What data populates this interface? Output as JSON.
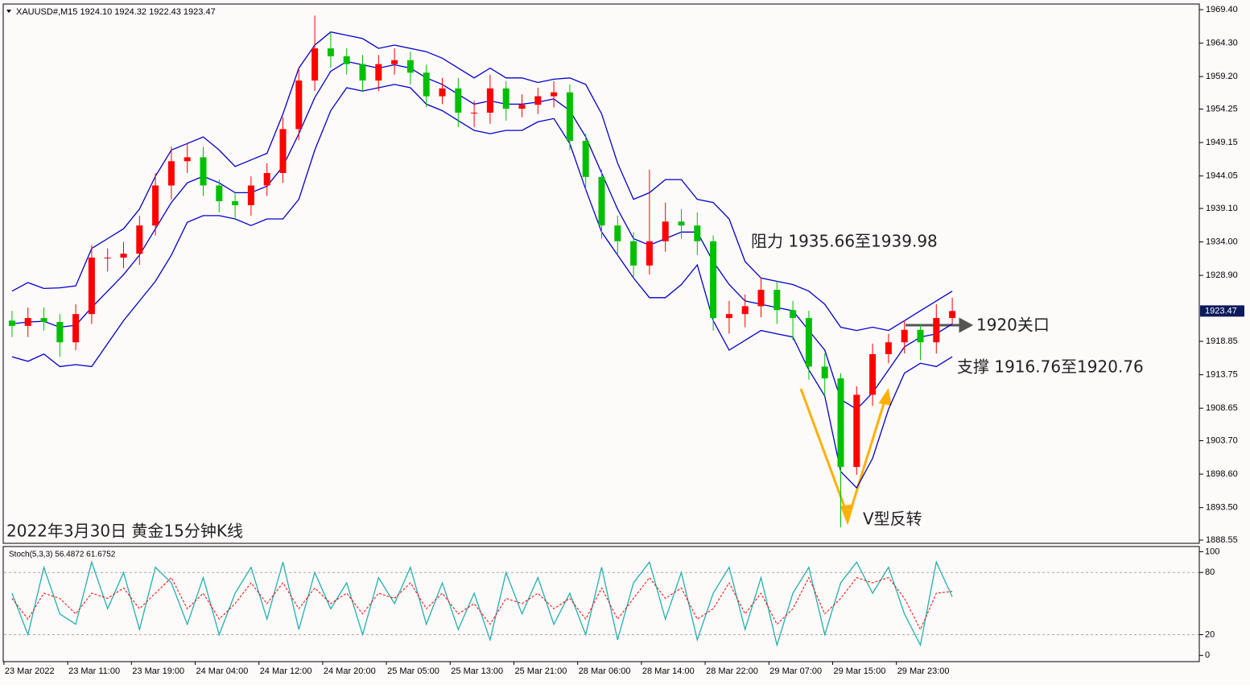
{
  "chart_data": [
    {
      "type": "candlestick",
      "header": "XAUUSD#,M15  1924.10 1924.32 1922.43 1923.47",
      "up_color": "#ff0000",
      "down_color": "#00c000",
      "categories": [
        "23 Mar 2022",
        null,
        null,
        null,
        "23 Mar 11:00",
        null,
        null,
        null,
        "23 Mar 19:00",
        null,
        null,
        null,
        "24 Mar 04:00",
        null,
        null,
        null,
        "24 Mar 12:00",
        null,
        null,
        null,
        "24 Mar 20:00",
        null,
        null,
        null,
        "25 Mar 05:00",
        null,
        null,
        null,
        "25 Mar 13:00",
        null,
        null,
        null,
        "25 Mar 21:00",
        null,
        null,
        null,
        "28 Mar 06:00",
        null,
        null,
        null,
        "28 Mar 14:00",
        null,
        null,
        null,
        "28 Mar 22:00",
        null,
        null,
        null,
        "29 Mar 07:00",
        null,
        null,
        null,
        "29 Mar 15:00",
        null,
        null,
        null,
        "29 Mar 23:00",
        null,
        null,
        null
      ],
      "open": [
        1922.0,
        1921.2,
        1922.4,
        1921.8,
        1918.7,
        1923.0,
        1931.6,
        1931.6,
        1932.2,
        1936.5,
        1942.6,
        1946.3,
        1946.9,
        1942.6,
        1940.2,
        1939.6,
        1942.6,
        1944.5,
        1951.2,
        1958.6,
        1963.5,
        1962.3,
        1961.1,
        1958.6,
        1961.1,
        1961.7,
        1959.8,
        1956.2,
        1957.4,
        1953.7,
        1953.7,
        1957.4,
        1954.3,
        1954.9,
        1956.2,
        1956.8,
        1949.4,
        1943.9,
        1936.5,
        1934.1,
        1930.4,
        1934.1,
        1937.1,
        1936.5,
        1934.1,
        1922.4,
        1923.0,
        1924.2,
        1926.7,
        1923.6,
        1922.4,
        1915.0,
        1913.2,
        1899.7,
        1910.7,
        1916.9,
        1918.7,
        1920.6,
        1918.7,
        1922.4
      ],
      "high": [
        1923.5,
        1924.0,
        1924.0,
        1923.0,
        1924.5,
        1933.5,
        1933.0,
        1934.0,
        1938.0,
        1944.5,
        1948.5,
        1949.0,
        1948.5,
        1943.5,
        1941.5,
        1944.0,
        1946.0,
        1953.0,
        1960.5,
        1968.5,
        1966.0,
        1963.5,
        1962.5,
        1962.5,
        1963.5,
        1963.0,
        1961.0,
        1959.0,
        1959.0,
        1955.5,
        1959.5,
        1958.5,
        1956.5,
        1957.5,
        1958.5,
        1958.0,
        1950.5,
        1945.0,
        1938.0,
        1935.5,
        1945.0,
        1940.0,
        1939.0,
        1938.5,
        1935.0,
        1925.0,
        1926.0,
        1928.5,
        1928.0,
        1925.0,
        1923.5,
        1917.0,
        1914.0,
        1912.0,
        1918.5,
        1920.0,
        1922.0,
        1921.5,
        1924.5,
        1925.5
      ],
      "low": [
        1919.5,
        1919.5,
        1920.5,
        1916.5,
        1917.5,
        1921.5,
        1929.5,
        1930.0,
        1930.5,
        1935.0,
        1940.5,
        1944.5,
        1941.0,
        1938.5,
        1937.5,
        1938.0,
        1941.0,
        1943.0,
        1949.5,
        1957.0,
        1960.5,
        1959.5,
        1957.0,
        1957.0,
        1959.5,
        1958.0,
        1954.5,
        1955.0,
        1951.5,
        1951.5,
        1952.0,
        1952.5,
        1953.0,
        1953.5,
        1954.5,
        1948.0,
        1942.0,
        1934.5,
        1932.0,
        1928.5,
        1929.0,
        1932.5,
        1934.5,
        1932.0,
        1920.5,
        1920.0,
        1921.0,
        1922.5,
        1921.5,
        1919.0,
        1913.0,
        1910.5,
        1890.5,
        1898.5,
        1909.0,
        1915.5,
        1917.0,
        1916.0,
        1917.0,
        1921.5
      ],
      "close": [
        1921.2,
        1922.4,
        1921.8,
        1918.7,
        1923.0,
        1931.6,
        1931.6,
        1932.2,
        1936.5,
        1942.6,
        1946.3,
        1946.9,
        1942.6,
        1940.2,
        1939.6,
        1942.6,
        1944.5,
        1951.2,
        1958.6,
        1963.5,
        1962.3,
        1961.1,
        1958.6,
        1961.1,
        1961.7,
        1959.8,
        1956.2,
        1957.4,
        1953.7,
        1953.7,
        1957.4,
        1954.3,
        1954.9,
        1956.2,
        1956.8,
        1949.4,
        1943.9,
        1936.5,
        1934.1,
        1930.4,
        1934.1,
        1937.1,
        1936.5,
        1934.1,
        1922.4,
        1923.0,
        1924.2,
        1926.7,
        1923.6,
        1922.4,
        1915.0,
        1913.2,
        1899.7,
        1910.7,
        1916.9,
        1918.7,
        1920.6,
        1918.7,
        1922.4,
        1923.47
      ],
      "series": [
        {
          "color": "#0000cc",
          "values": [
            1926.5,
            1927.8,
            1926.9,
            1927.0,
            1927.3,
            1933.0,
            1934.5,
            1936.0,
            1939.0,
            1944.0,
            1948.0,
            1949.0,
            1950.0,
            1948.0,
            1945.5,
            1946.5,
            1947.5,
            1953.5,
            1960.5,
            1964.0,
            1966.0,
            1965.5,
            1965.0,
            1963.5,
            1964.0,
            1963.5,
            1963.0,
            1962.0,
            1960.5,
            1959.0,
            1960.5,
            1959.0,
            1959.0,
            1958.3,
            1958.8,
            1959.0,
            1958.0,
            1953.5,
            1946.0,
            1940.5,
            1941.5,
            1943.5,
            1943.5,
            1940.5,
            1940.0,
            1937.5,
            1931.0,
            1928.5,
            1928.0,
            1927.5,
            1926.5,
            1924.5,
            1921.0,
            1920.5,
            1921.0,
            1920.5,
            1922.0,
            1923.5,
            1925.0,
            1926.5
          ]
        },
        {
          "color": "#0000cc",
          "values": [
            1921.5,
            1921.8,
            1921.9,
            1921.0,
            1921.3,
            1924.0,
            1926.5,
            1929.0,
            1932.0,
            1936.0,
            1940.0,
            1943.0,
            1944.0,
            1943.0,
            1941.5,
            1941.5,
            1942.5,
            1945.5,
            1950.5,
            1956.0,
            1960.0,
            1961.5,
            1961.0,
            1960.5,
            1961.0,
            1960.5,
            1959.0,
            1958.0,
            1956.5,
            1955.0,
            1955.5,
            1955.0,
            1955.0,
            1955.3,
            1955.8,
            1954.0,
            1950.0,
            1944.5,
            1939.0,
            1934.5,
            1933.5,
            1934.5,
            1935.5,
            1935.5,
            1931.0,
            1927.5,
            1925.0,
            1924.5,
            1924.0,
            1923.5,
            1920.5,
            1917.5,
            1910.0,
            1908.5,
            1911.0,
            1914.5,
            1918.0,
            1919.5,
            1920.0,
            1921.5
          ]
        },
        {
          "color": "#0000cc",
          "values": [
            1916.5,
            1915.8,
            1916.9,
            1915.0,
            1915.3,
            1915.0,
            1918.5,
            1922.0,
            1925.0,
            1928.0,
            1932.0,
            1937.0,
            1938.0,
            1938.0,
            1937.5,
            1936.5,
            1937.5,
            1937.5,
            1940.5,
            1948.0,
            1954.0,
            1957.5,
            1957.0,
            1957.5,
            1958.0,
            1957.5,
            1955.0,
            1954.0,
            1952.5,
            1951.0,
            1950.5,
            1951.0,
            1951.0,
            1952.3,
            1952.8,
            1949.0,
            1942.0,
            1935.5,
            1932.0,
            1928.5,
            1925.5,
            1925.5,
            1927.5,
            1930.5,
            1922.0,
            1917.5,
            1919.0,
            1920.5,
            1920.0,
            1919.5,
            1914.5,
            1910.5,
            1899.0,
            1896.5,
            1901.0,
            1908.5,
            1914.0,
            1915.5,
            1915.0,
            1916.5
          ]
        }
      ],
      "ylim": [
        1888.06,
        1970.26
      ],
      "yticks": [
        {
          "value": 1969.4,
          "label": "1969.40"
        },
        {
          "value": 1964.3,
          "label": "1964.30"
        },
        {
          "value": 1959.2,
          "label": "1959.20"
        },
        {
          "value": 1954.25,
          "label": "1954.25"
        },
        {
          "value": 1949.15,
          "label": "1949.15"
        },
        {
          "value": 1944.05,
          "label": "1944.05"
        },
        {
          "value": 1939.1,
          "label": "1939.10"
        },
        {
          "value": 1934.0,
          "label": "1934.00"
        },
        {
          "value": 1928.9,
          "label": "1928.90"
        },
        {
          "value": 1918.85,
          "label": "1918.85"
        },
        {
          "value": 1913.75,
          "label": "1913.75"
        },
        {
          "value": 1908.65,
          "label": "1908.65"
        },
        {
          "value": 1903.7,
          "label": "1903.70"
        },
        {
          "value": 1898.6,
          "label": "1898.60"
        },
        {
          "value": 1893.5,
          "label": "1893.50"
        },
        {
          "value": 1888.55,
          "label": "1888.55"
        }
      ],
      "annotations": [
        "阻力 1935.66至1939.98",
        "1920关口",
        "支撑 1916.76至1920.76",
        "V型反转",
        "2022年3月30日 黄金15分钟K线"
      ]
    },
    {
      "type": "line",
      "label": "Stoch(5,3,3) 56.4872 61.6752",
      "series": [
        {
          "color": "#20b2aa",
          "values": [
            60,
            20,
            85,
            40,
            30,
            90,
            45,
            80,
            25,
            85,
            70,
            30,
            75,
            20,
            60,
            85,
            35,
            90,
            25,
            80,
            45,
            70,
            20,
            75,
            50,
            85,
            30,
            70,
            25,
            60,
            15,
            80,
            40,
            75,
            30,
            60,
            20,
            85,
            15,
            70,
            90,
            35,
            80,
            15,
            60,
            85,
            25,
            75,
            10,
            60,
            85,
            20,
            70,
            90,
            60,
            85,
            40,
            10,
            90,
            56.49
          ]
        },
        {
          "color": "#ff0000",
          "values": [
            55,
            35,
            60,
            55,
            40,
            60,
            55,
            65,
            45,
            60,
            75,
            45,
            60,
            35,
            50,
            70,
            50,
            70,
            45,
            65,
            50,
            60,
            40,
            60,
            55,
            70,
            45,
            60,
            40,
            50,
            30,
            55,
            50,
            60,
            45,
            55,
            35,
            65,
            35,
            55,
            75,
            55,
            65,
            35,
            45,
            70,
            40,
            60,
            30,
            45,
            75,
            40,
            55,
            75,
            70,
            75,
            55,
            25,
            60,
            61.68
          ]
        }
      ],
      "ylim": [
        -6,
        105
      ],
      "yticks": [
        0,
        20,
        80,
        100
      ],
      "levels": [
        20,
        80
      ]
    }
  ]
}
